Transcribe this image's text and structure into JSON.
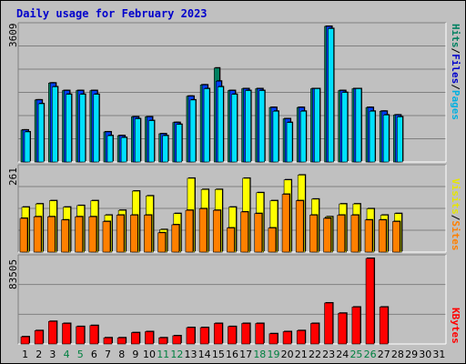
{
  "title": "Daily usage for February 2023",
  "colors": {
    "hits": "#008060",
    "files": "#0040ff",
    "pages": "#00e0ff",
    "visits": "#ffff00",
    "sites": "#ff8000",
    "kbytes": "#ff0000",
    "weekday_label": "#000000",
    "weekend_label": "#008040"
  },
  "panels": {
    "top": {
      "ymax_label": "3609",
      "labels": {
        "pages": "Pages",
        "files": "Files",
        "hits": "Hits",
        "slash": "/"
      }
    },
    "mid": {
      "ymax_label": "261",
      "labels": {
        "sites": "Sites",
        "visits": "Visits",
        "slash": "/"
      }
    },
    "bottom": {
      "ymax_label": "83505",
      "labels": {
        "kbytes": "KBytes"
      }
    }
  },
  "chart_data": {
    "type": "bar",
    "title": "Daily usage for February 2023",
    "x": [
      1,
      2,
      3,
      4,
      5,
      6,
      7,
      8,
      9,
      10,
      11,
      12,
      13,
      14,
      15,
      16,
      17,
      18,
      19,
      20,
      21,
      22,
      23,
      24,
      25,
      26,
      27,
      28,
      29,
      30,
      31
    ],
    "weekend_days": [
      4,
      5,
      11,
      12,
      18,
      19,
      25,
      26
    ],
    "panels": [
      {
        "name": "hits-files-pages",
        "ymax": 3609,
        "series": [
          {
            "name": "Hits",
            "values": [
              850,
              1650,
              2100,
              1900,
              1900,
              1900,
              800,
              700,
              1200,
              1200,
              750,
              1050,
              1750,
              2050,
              2500,
              1900,
              1950,
              1950,
              1450,
              1150,
              1450,
              1950,
              3609,
              1900,
              1950,
              1450,
              1350,
              1250,
              0,
              0,
              0
            ]
          },
          {
            "name": "Files",
            "values": [
              850,
              1650,
              2100,
              1900,
              1900,
              1900,
              800,
              700,
              1200,
              1200,
              750,
              1050,
              1750,
              2050,
              2150,
              1900,
              1950,
              1950,
              1450,
              1150,
              1450,
              1950,
              3609,
              1900,
              1950,
              1450,
              1350,
              1250,
              0,
              0,
              0
            ]
          },
          {
            "name": "Pages",
            "values": [
              800,
              1550,
              2000,
              1800,
              1800,
              1800,
              700,
              650,
              1150,
              1100,
              700,
              1000,
              1650,
              1950,
              2000,
              1800,
              1900,
              1900,
              1350,
              1050,
              1350,
              1950,
              3550,
              1850,
              1950,
              1350,
              1250,
              1200,
              0,
              0,
              0
            ]
          }
        ]
      },
      {
        "name": "visits-sites",
        "ymax": 261,
        "series": [
          {
            "name": "Visits",
            "values": [
              140,
              150,
              160,
              140,
              145,
              160,
              115,
              130,
              190,
              175,
              70,
              120,
              230,
              195,
              195,
              140,
              230,
              185,
              160,
              225,
              240,
              165,
              110,
              150,
              150,
              135,
              115,
              120,
              0,
              0,
              0
            ]
          },
          {
            "name": "Sites",
            "values": [
              105,
              110,
              110,
              100,
              110,
              110,
              95,
              115,
              115,
              115,
              60,
              85,
              130,
              135,
              130,
              75,
              125,
              120,
              75,
              180,
              160,
              115,
              105,
              115,
              115,
              100,
              100,
              95,
              0,
              0,
              0
            ]
          }
        ]
      },
      {
        "name": "kbytes",
        "ymax": 83505,
        "series": [
          {
            "name": "KBytes",
            "values": [
              7000,
              13000,
              22000,
              20000,
              17000,
              18000,
              6000,
              6000,
              11000,
              12000,
              6000,
              8000,
              16000,
              16000,
              20000,
              17000,
              20000,
              20000,
              10000,
              12000,
              13000,
              20000,
              40000,
              30000,
              36000,
              83505,
              36000,
              0,
              0,
              0,
              0
            ]
          }
        ]
      }
    ]
  }
}
